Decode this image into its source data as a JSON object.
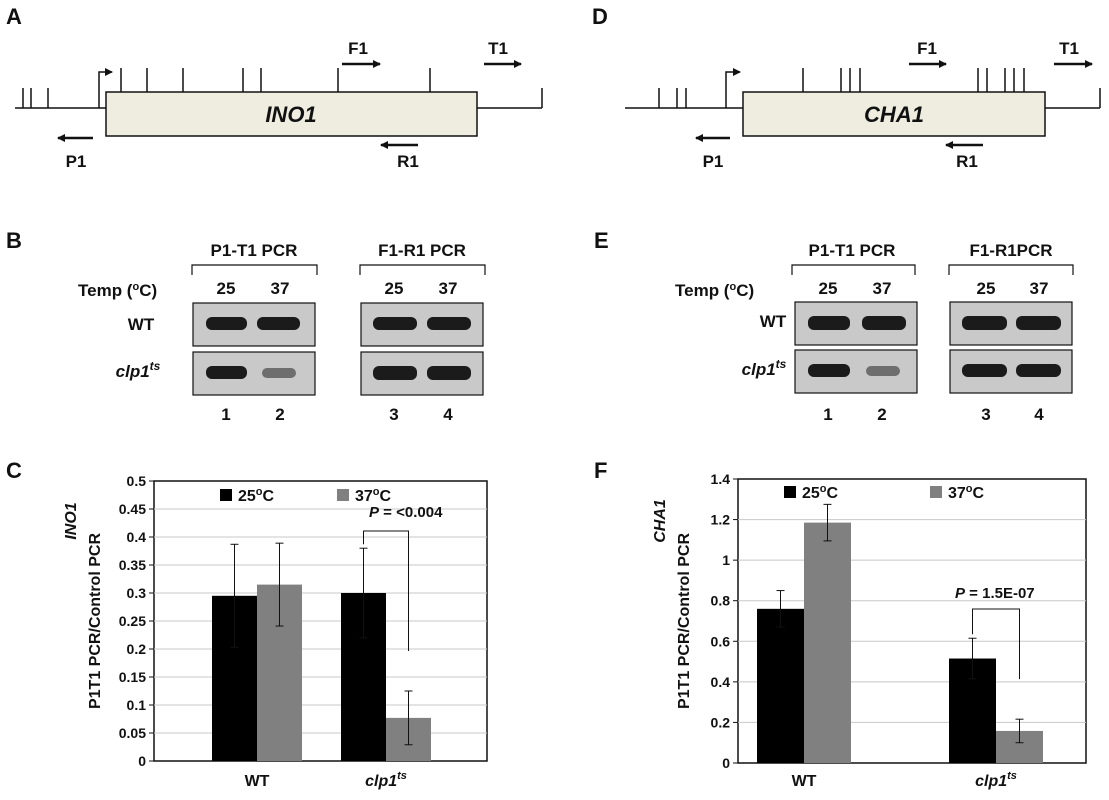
{
  "panels": {
    "A": {
      "letter": "A",
      "gene": "INO1",
      "primers": {
        "F1": "F1",
        "T1": "T1",
        "P1": "P1",
        "R1": "R1"
      }
    },
    "D": {
      "letter": "D",
      "gene": "CHA1",
      "primers": {
        "F1": "F1",
        "T1": "T1",
        "P1": "P1",
        "R1": "R1"
      }
    },
    "B": {
      "letter": "B",
      "group1": "P1-T1 PCR",
      "group2": "F1-R1 PCR",
      "temp_label": "Temp (",
      "temp_degree": "o",
      "temp_unit": "C)",
      "temps": [
        "25",
        "37",
        "25",
        "37"
      ],
      "row_wt": "WT",
      "row_mut": "clp1",
      "row_mut_sup": "ts",
      "lanes": [
        "1",
        "2",
        "3",
        "4"
      ]
    },
    "E": {
      "letter": "E",
      "group1": "P1-T1 PCR",
      "group2": "F1-R1PCR",
      "temp_label": "Temp (",
      "temp_degree": "o",
      "temp_unit": "C)",
      "temps": [
        "25",
        "37",
        "25",
        "37"
      ],
      "row_wt": "WT",
      "row_mut": "clp1",
      "row_mut_sup": "ts",
      "lanes": [
        "1",
        "2",
        "3",
        "4"
      ]
    }
  },
  "colors": {
    "bar_25": "#000000",
    "bar_37": "#808080",
    "gene_box": "#eeede0",
    "grid": "#c8c8c8"
  },
  "chart_data": [
    {
      "panel": "C",
      "type": "bar",
      "ylabel_gene": "INO1",
      "ylabel": "P1T1 PCR/Control PCR",
      "categories": [
        "WT",
        "clp1"
      ],
      "category_sup": [
        "",
        "ts"
      ],
      "ylim": [
        0,
        0.5
      ],
      "yticks": [
        "0",
        "0.05",
        "0.1",
        "0.15",
        "0.2",
        "0.25",
        "0.3",
        "0.35",
        "0.4",
        "0.45",
        "0.5"
      ],
      "legend": {
        "s1_main": "25",
        "s1_deg": "o",
        "s1_unit": "C",
        "s2_main": "37",
        "s2_deg": "o",
        "s2_unit": "C"
      },
      "series": [
        {
          "values": [
            0.295,
            0.3
          ],
          "errors": [
            0.092,
            0.08
          ]
        },
        {
          "values": [
            0.315,
            0.077
          ],
          "errors": [
            0.074,
            0.048
          ]
        }
      ],
      "pvalue": {
        "p": "P",
        "text": " = <0.004"
      }
    },
    {
      "panel": "F",
      "type": "bar",
      "ylabel_gene": "CHA1",
      "ylabel": "P1T1 PCR/Control PCR",
      "categories": [
        "WT",
        "clp1"
      ],
      "category_sup": [
        "",
        "ts"
      ],
      "ylim": [
        0,
        1.4
      ],
      "yticks": [
        "0",
        "0.2",
        "0.4",
        "0.6",
        "0.8",
        "1",
        "1.2",
        "1.4"
      ],
      "legend": {
        "s1_main": "25",
        "s1_deg": "o",
        "s1_unit": "C",
        "s2_main": "37",
        "s2_deg": "o",
        "s2_unit": "C"
      },
      "series": [
        {
          "values": [
            0.76,
            0.515
          ],
          "errors": [
            0.09,
            0.1
          ]
        },
        {
          "values": [
            1.185,
            0.158
          ],
          "errors": [
            0.09,
            0.058
          ]
        }
      ],
      "pvalue": {
        "p": "P",
        "text": " = 1.5E-07"
      }
    }
  ]
}
